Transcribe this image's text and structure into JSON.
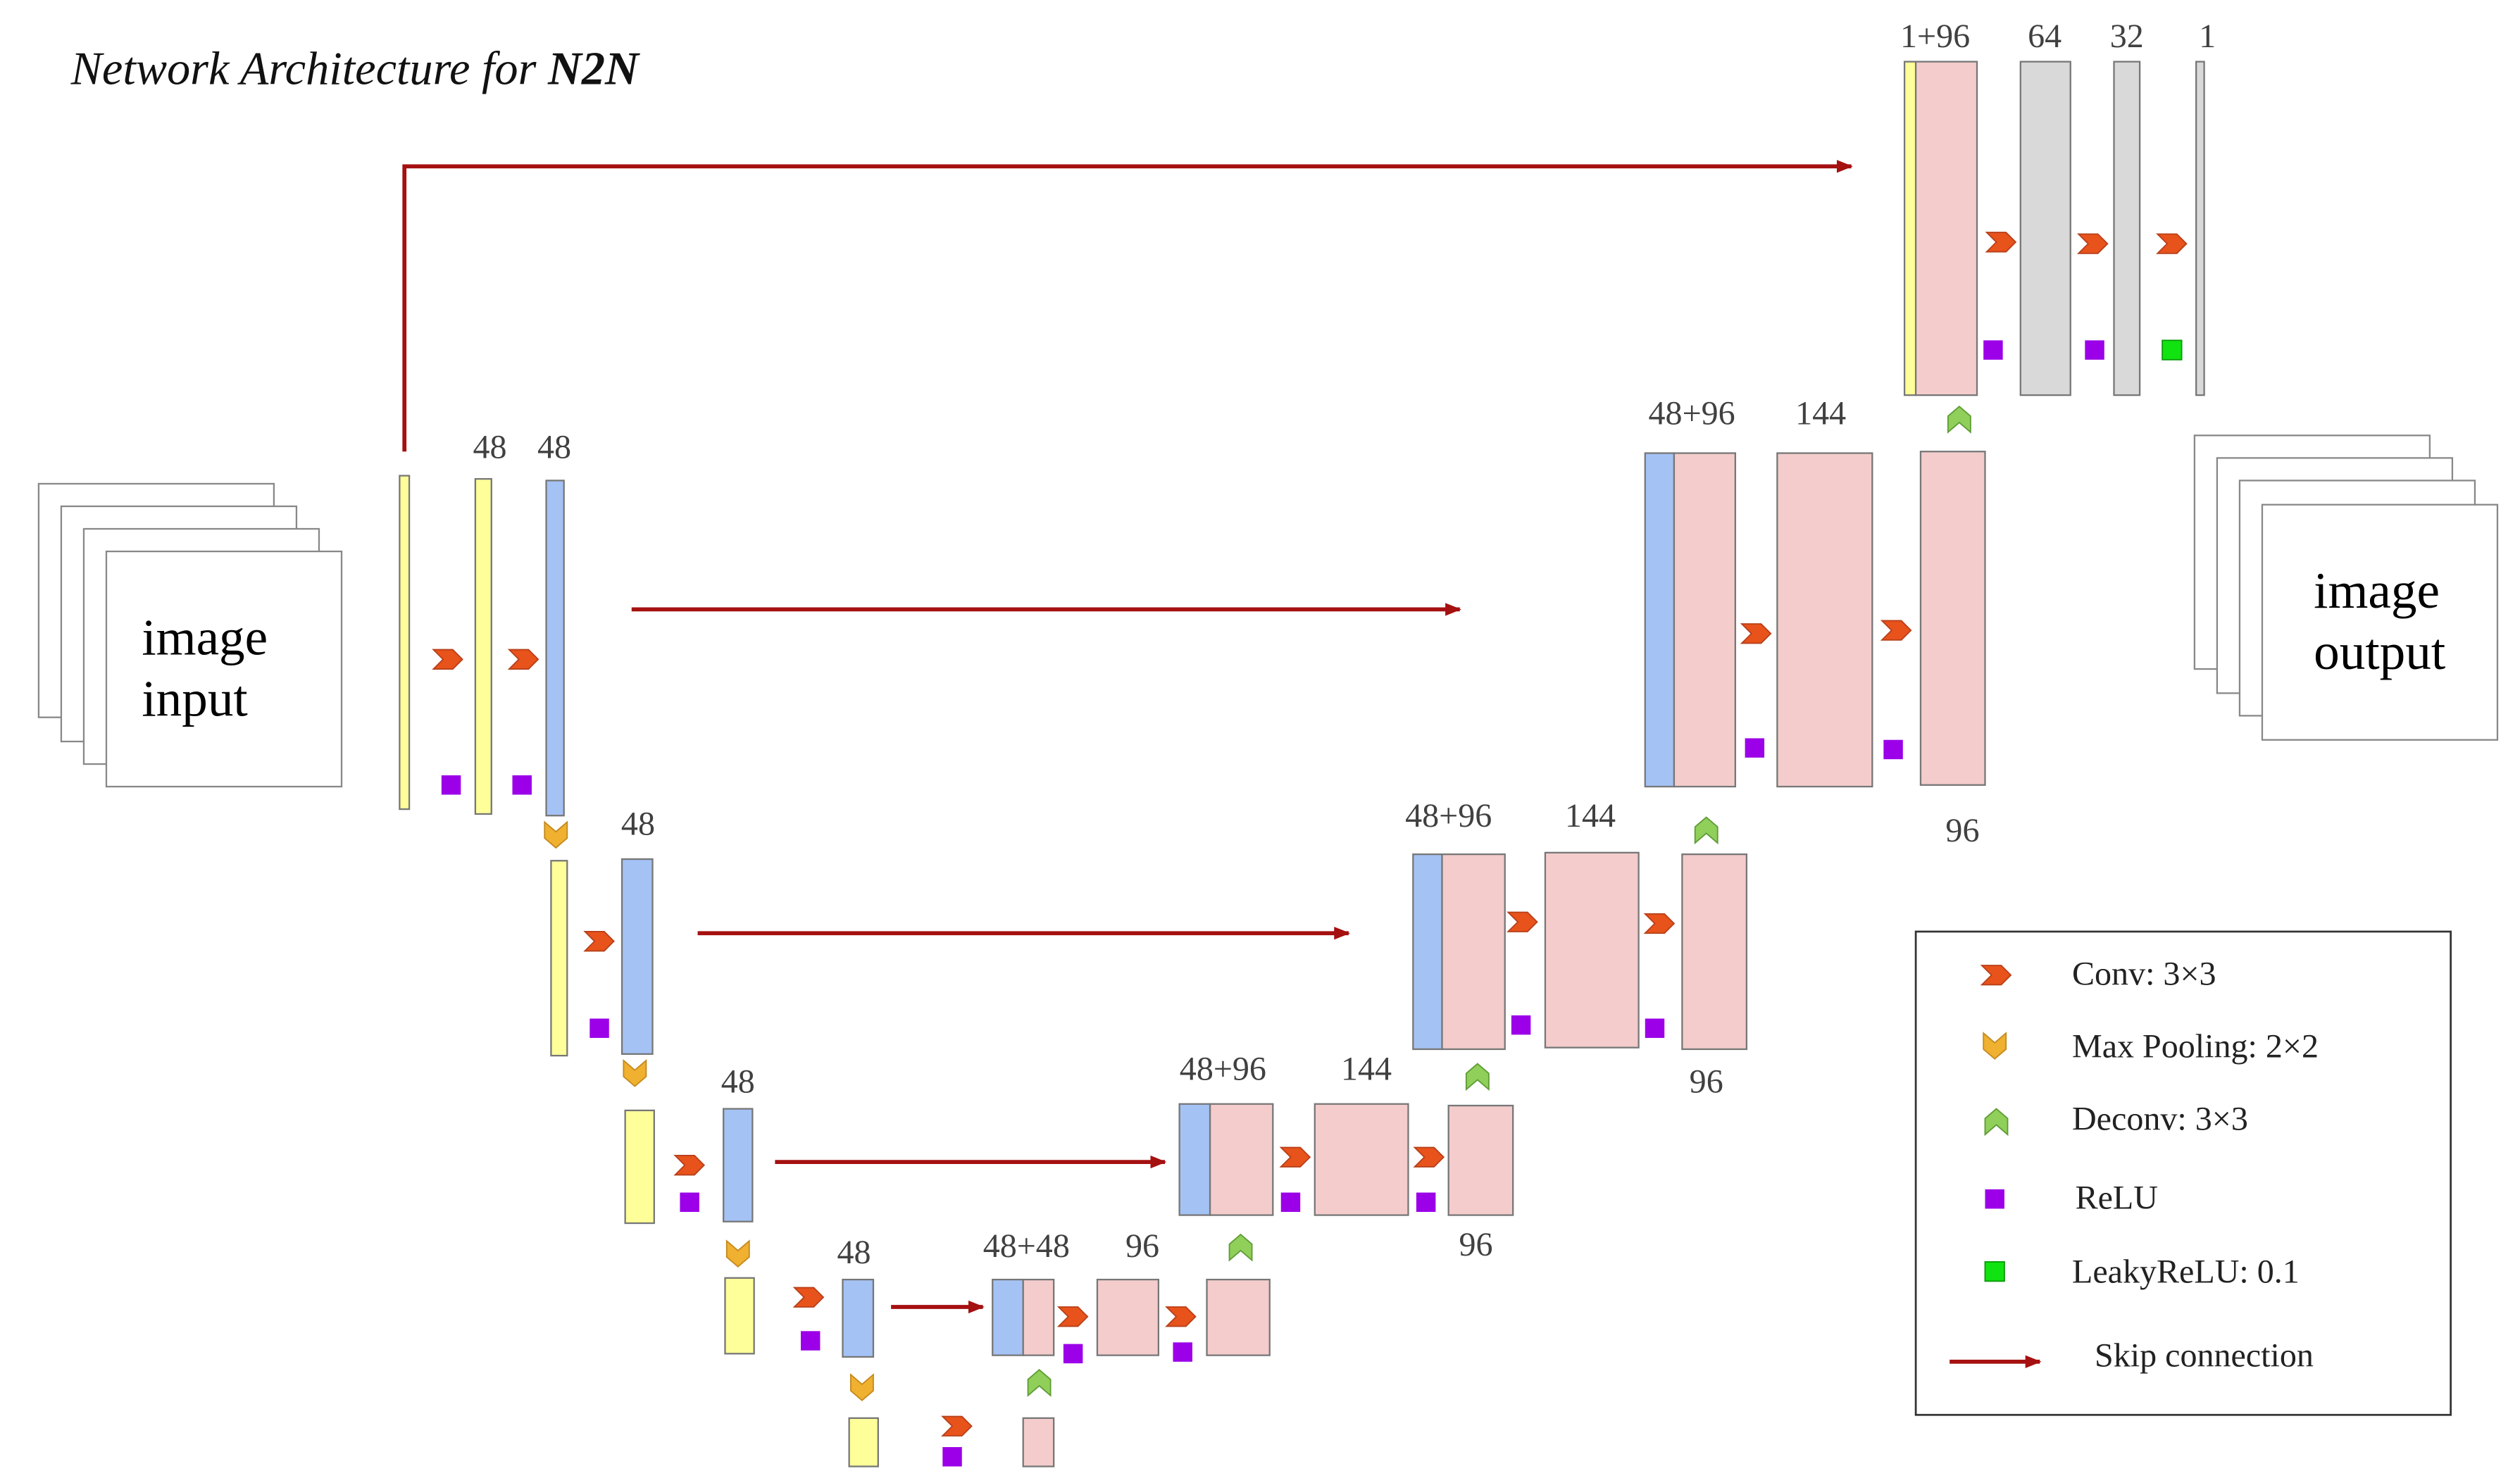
{
  "title": {
    "prefix": "Network Architecture for ",
    "bold": "N2N"
  },
  "input_label": {
    "line1": "image",
    "line2": "input"
  },
  "output_label": {
    "line1": "image",
    "line2": "output"
  },
  "channels": {
    "enc0_a": "48",
    "enc0_b": "48",
    "enc1": "48",
    "enc2": "48",
    "enc3": "48",
    "dec3_concat": "48+48",
    "dec3_conv": "96",
    "dec2_concat": "48+96",
    "dec2_conv1": "144",
    "dec2_conv2": "96",
    "dec1_concat": "48+96",
    "dec1_conv1": "144",
    "dec1_conv2": "96",
    "dec0_concat": "48+96",
    "dec0_conv1": "144",
    "dec0_conv2": "96",
    "final_concat": "1+96",
    "final_1": "64",
    "final_2": "32",
    "final_3": "1"
  },
  "legend": {
    "conv": "Conv: 3×3",
    "maxpool": "Max Pooling: 2×2",
    "deconv": "Deconv: 3×3",
    "relu": "ReLU",
    "leaky": "LeakyReLU: 0.1",
    "skip": "Skip connection"
  },
  "colors": {
    "input_block": "#ffff99",
    "encoder_block": "#a4c2f4",
    "decoder_block": "#f4cccc",
    "final_block": "#d9d9d9",
    "conv_arrow": "#e8531b",
    "maxpool_arrow": "#f0b030",
    "deconv_arrow": "#8fcf5a",
    "relu": "#9b00e8",
    "leaky_relu": "#11e311",
    "skip_connection": "#a51010"
  }
}
